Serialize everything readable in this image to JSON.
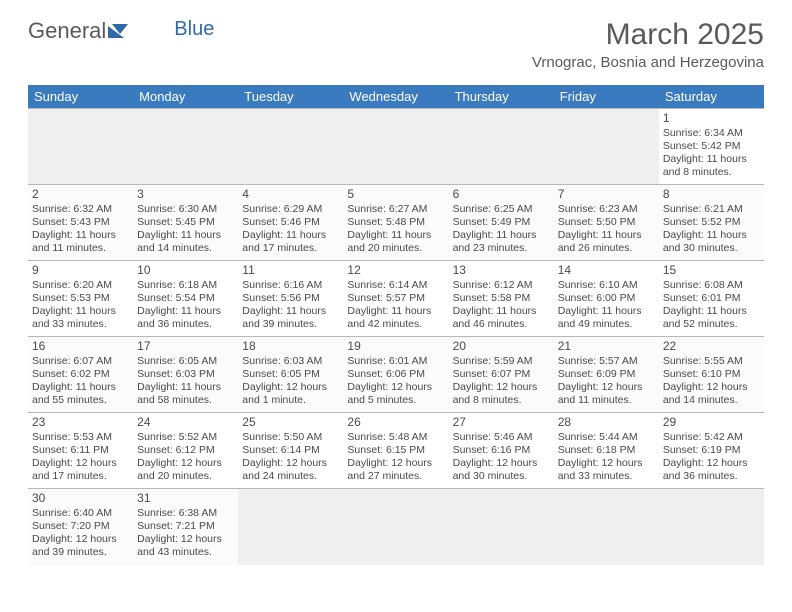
{
  "logo": {
    "text1": "General",
    "text2": "Blue"
  },
  "title": "March 2025",
  "location": "Vrnograc, Bosnia and Herzegovina",
  "colors": {
    "header_bg": "#3a7bbf",
    "header_fg": "#ffffff",
    "text": "#5a5a5a",
    "cell_text": "#4a4a4a",
    "border": "#b8b8b8",
    "blank_bg": "#efefef"
  },
  "weekdays": [
    "Sunday",
    "Monday",
    "Tuesday",
    "Wednesday",
    "Thursday",
    "Friday",
    "Saturday"
  ],
  "weeks": [
    [
      null,
      null,
      null,
      null,
      null,
      null,
      {
        "n": "1",
        "sunrise": "Sunrise: 6:34 AM",
        "sunset": "Sunset: 5:42 PM",
        "daylight": "Daylight: 11 hours and 8 minutes."
      }
    ],
    [
      {
        "n": "2",
        "sunrise": "Sunrise: 6:32 AM",
        "sunset": "Sunset: 5:43 PM",
        "daylight": "Daylight: 11 hours and 11 minutes."
      },
      {
        "n": "3",
        "sunrise": "Sunrise: 6:30 AM",
        "sunset": "Sunset: 5:45 PM",
        "daylight": "Daylight: 11 hours and 14 minutes."
      },
      {
        "n": "4",
        "sunrise": "Sunrise: 6:29 AM",
        "sunset": "Sunset: 5:46 PM",
        "daylight": "Daylight: 11 hours and 17 minutes."
      },
      {
        "n": "5",
        "sunrise": "Sunrise: 6:27 AM",
        "sunset": "Sunset: 5:48 PM",
        "daylight": "Daylight: 11 hours and 20 minutes."
      },
      {
        "n": "6",
        "sunrise": "Sunrise: 6:25 AM",
        "sunset": "Sunset: 5:49 PM",
        "daylight": "Daylight: 11 hours and 23 minutes."
      },
      {
        "n": "7",
        "sunrise": "Sunrise: 6:23 AM",
        "sunset": "Sunset: 5:50 PM",
        "daylight": "Daylight: 11 hours and 26 minutes."
      },
      {
        "n": "8",
        "sunrise": "Sunrise: 6:21 AM",
        "sunset": "Sunset: 5:52 PM",
        "daylight": "Daylight: 11 hours and 30 minutes."
      }
    ],
    [
      {
        "n": "9",
        "sunrise": "Sunrise: 6:20 AM",
        "sunset": "Sunset: 5:53 PM",
        "daylight": "Daylight: 11 hours and 33 minutes."
      },
      {
        "n": "10",
        "sunrise": "Sunrise: 6:18 AM",
        "sunset": "Sunset: 5:54 PM",
        "daylight": "Daylight: 11 hours and 36 minutes."
      },
      {
        "n": "11",
        "sunrise": "Sunrise: 6:16 AM",
        "sunset": "Sunset: 5:56 PM",
        "daylight": "Daylight: 11 hours and 39 minutes."
      },
      {
        "n": "12",
        "sunrise": "Sunrise: 6:14 AM",
        "sunset": "Sunset: 5:57 PM",
        "daylight": "Daylight: 11 hours and 42 minutes."
      },
      {
        "n": "13",
        "sunrise": "Sunrise: 6:12 AM",
        "sunset": "Sunset: 5:58 PM",
        "daylight": "Daylight: 11 hours and 46 minutes."
      },
      {
        "n": "14",
        "sunrise": "Sunrise: 6:10 AM",
        "sunset": "Sunset: 6:00 PM",
        "daylight": "Daylight: 11 hours and 49 minutes."
      },
      {
        "n": "15",
        "sunrise": "Sunrise: 6:08 AM",
        "sunset": "Sunset: 6:01 PM",
        "daylight": "Daylight: 11 hours and 52 minutes."
      }
    ],
    [
      {
        "n": "16",
        "sunrise": "Sunrise: 6:07 AM",
        "sunset": "Sunset: 6:02 PM",
        "daylight": "Daylight: 11 hours and 55 minutes."
      },
      {
        "n": "17",
        "sunrise": "Sunrise: 6:05 AM",
        "sunset": "Sunset: 6:03 PM",
        "daylight": "Daylight: 11 hours and 58 minutes."
      },
      {
        "n": "18",
        "sunrise": "Sunrise: 6:03 AM",
        "sunset": "Sunset: 6:05 PM",
        "daylight": "Daylight: 12 hours and 1 minute."
      },
      {
        "n": "19",
        "sunrise": "Sunrise: 6:01 AM",
        "sunset": "Sunset: 6:06 PM",
        "daylight": "Daylight: 12 hours and 5 minutes."
      },
      {
        "n": "20",
        "sunrise": "Sunrise: 5:59 AM",
        "sunset": "Sunset: 6:07 PM",
        "daylight": "Daylight: 12 hours and 8 minutes."
      },
      {
        "n": "21",
        "sunrise": "Sunrise: 5:57 AM",
        "sunset": "Sunset: 6:09 PM",
        "daylight": "Daylight: 12 hours and 11 minutes."
      },
      {
        "n": "22",
        "sunrise": "Sunrise: 5:55 AM",
        "sunset": "Sunset: 6:10 PM",
        "daylight": "Daylight: 12 hours and 14 minutes."
      }
    ],
    [
      {
        "n": "23",
        "sunrise": "Sunrise: 5:53 AM",
        "sunset": "Sunset: 6:11 PM",
        "daylight": "Daylight: 12 hours and 17 minutes."
      },
      {
        "n": "24",
        "sunrise": "Sunrise: 5:52 AM",
        "sunset": "Sunset: 6:12 PM",
        "daylight": "Daylight: 12 hours and 20 minutes."
      },
      {
        "n": "25",
        "sunrise": "Sunrise: 5:50 AM",
        "sunset": "Sunset: 6:14 PM",
        "daylight": "Daylight: 12 hours and 24 minutes."
      },
      {
        "n": "26",
        "sunrise": "Sunrise: 5:48 AM",
        "sunset": "Sunset: 6:15 PM",
        "daylight": "Daylight: 12 hours and 27 minutes."
      },
      {
        "n": "27",
        "sunrise": "Sunrise: 5:46 AM",
        "sunset": "Sunset: 6:16 PM",
        "daylight": "Daylight: 12 hours and 30 minutes."
      },
      {
        "n": "28",
        "sunrise": "Sunrise: 5:44 AM",
        "sunset": "Sunset: 6:18 PM",
        "daylight": "Daylight: 12 hours and 33 minutes."
      },
      {
        "n": "29",
        "sunrise": "Sunrise: 5:42 AM",
        "sunset": "Sunset: 6:19 PM",
        "daylight": "Daylight: 12 hours and 36 minutes."
      }
    ],
    [
      {
        "n": "30",
        "sunrise": "Sunrise: 6:40 AM",
        "sunset": "Sunset: 7:20 PM",
        "daylight": "Daylight: 12 hours and 39 minutes."
      },
      {
        "n": "31",
        "sunrise": "Sunrise: 6:38 AM",
        "sunset": "Sunset: 7:21 PM",
        "daylight": "Daylight: 12 hours and 43 minutes."
      },
      null,
      null,
      null,
      null,
      null
    ]
  ]
}
